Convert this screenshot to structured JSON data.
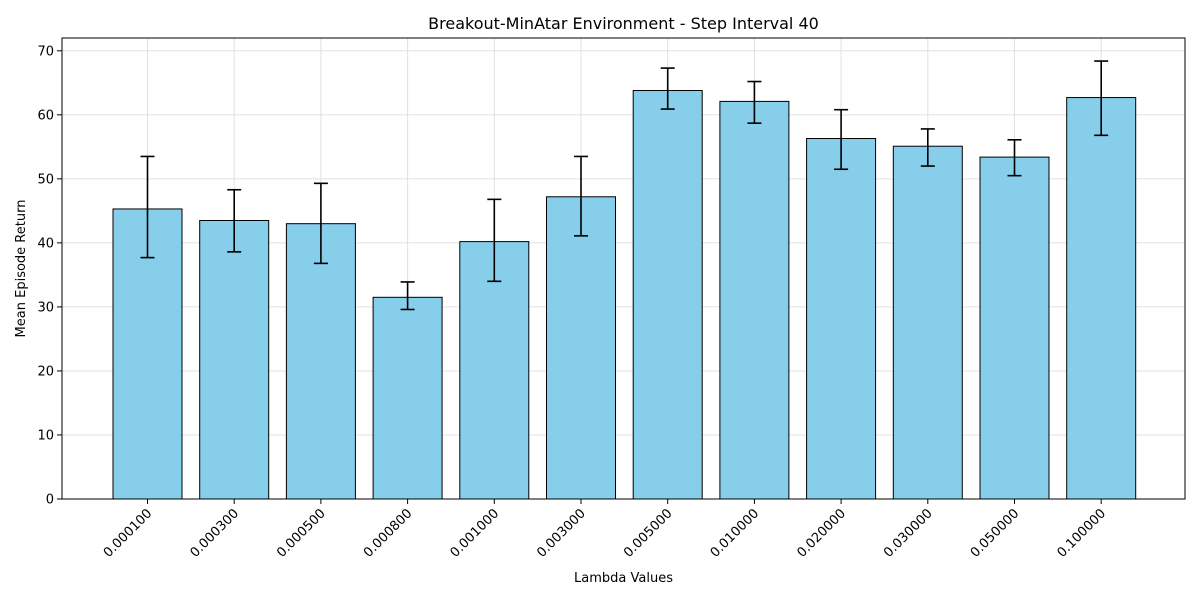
{
  "chart_data": {
    "type": "bar",
    "title": "Breakout-MinAtar Environment - Step Interval 40",
    "xlabel": "Lambda Values",
    "ylabel": "Mean Episode Return",
    "categories": [
      "0.000100",
      "0.000300",
      "0.000500",
      "0.000800",
      "0.001000",
      "0.003000",
      "0.005000",
      "0.010000",
      "0.020000",
      "0.030000",
      "0.050000",
      "0.100000"
    ],
    "values": [
      45.3,
      43.5,
      43.0,
      31.5,
      40.2,
      47.2,
      63.8,
      62.1,
      56.3,
      55.1,
      53.4,
      62.7
    ],
    "error_low": [
      37.7,
      38.6,
      36.8,
      29.6,
      34.0,
      41.1,
      60.9,
      58.7,
      51.5,
      52.0,
      50.5,
      56.8
    ],
    "error_high": [
      53.5,
      48.3,
      49.3,
      33.9,
      46.8,
      53.5,
      67.3,
      65.2,
      60.8,
      57.8,
      56.1,
      68.4
    ],
    "ylim": [
      0,
      72
    ],
    "yticks": [
      0,
      10,
      20,
      30,
      40,
      50,
      60,
      70
    ],
    "grid": true,
    "bar_color": "#87ceeb",
    "edge_color": "#000000",
    "grid_color": "#e0e0e0"
  }
}
